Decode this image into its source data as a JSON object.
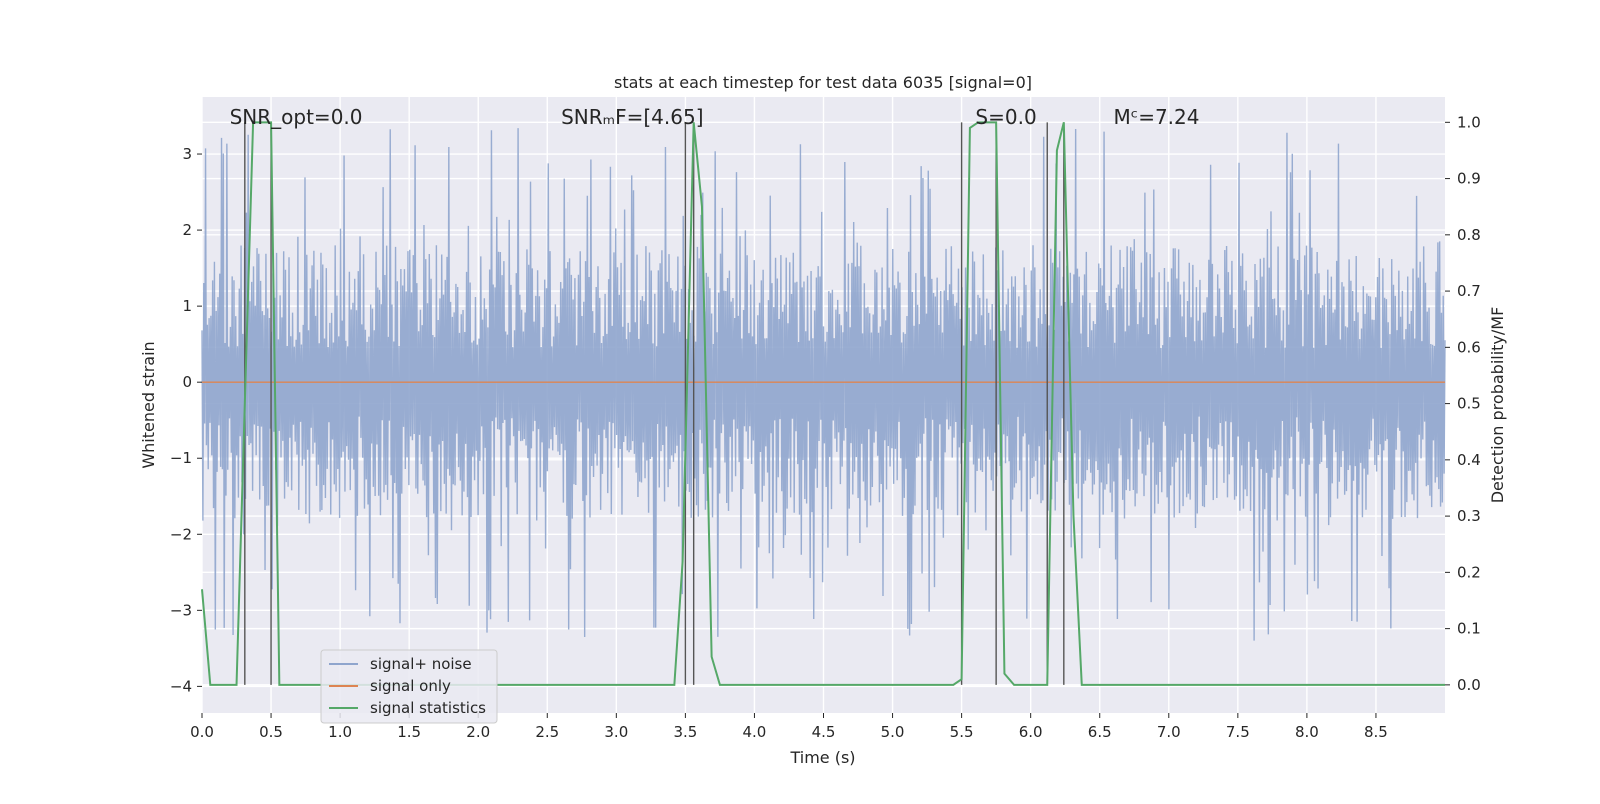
{
  "chart_data": {
    "type": "line",
    "title": "stats at each timestep for test data 6035 [signal=0]",
    "xlabel": "Time (s)",
    "ylabel": "Whitened strain",
    "ylabel_right": "Detection probability/MF",
    "xlim": [
      0,
      9.0
    ],
    "ylim": [
      -4.35,
      3.75
    ],
    "ylim_right": [
      -0.05,
      1.045
    ],
    "x_ticks": [
      0.0,
      0.5,
      1.0,
      1.5,
      2.0,
      2.5,
      3.0,
      3.5,
      4.0,
      4.5,
      5.0,
      5.5,
      6.0,
      6.5,
      7.0,
      7.5,
      8.0,
      8.5
    ],
    "x_tick_labels": [
      "0.0",
      "0.5",
      "1.0",
      "1.5",
      "2.0",
      "2.5",
      "3.0",
      "3.5",
      "4.0",
      "4.5",
      "5.0",
      "5.5",
      "6.0",
      "6.5",
      "7.0",
      "7.5",
      "8.0",
      "8.5"
    ],
    "y_ticks": [
      -4,
      -3,
      -2,
      -1,
      0,
      1,
      2,
      3
    ],
    "y_tick_labels": [
      "−4",
      "−3",
      "−2",
      "−1",
      "0",
      "1",
      "2",
      "3"
    ],
    "y_ticks_right": [
      0.0,
      0.1,
      0.2,
      0.3,
      0.4,
      0.5,
      0.6,
      0.7,
      0.8,
      0.9,
      1.0
    ],
    "y_tick_labels_right": [
      "0.0",
      "0.1",
      "0.2",
      "0.3",
      "0.4",
      "0.5",
      "0.6",
      "0.7",
      "0.8",
      "0.9",
      "1.0"
    ],
    "grid": true,
    "legend_position": "lower-left",
    "annotations": [
      {
        "text": "SNR_opt=0.0",
        "x": 0.2
      },
      {
        "text": "SNRₘF=[4.65]",
        "x": 2.6
      },
      {
        "text": "S=0.0",
        "x": 5.6
      },
      {
        "text": "Mᶜ=7.24",
        "x": 6.6
      }
    ],
    "vertical_lines": [
      0.31,
      0.5,
      3.5,
      3.56,
      5.5,
      5.75,
      6.12,
      6.24
    ],
    "series": [
      {
        "name": "signal+ noise",
        "color": "#8fa5cd",
        "axis": "left",
        "description": "noise band approx symmetric, core within +/-1.8, spikes to +/-3.4",
        "x_range": [
          0,
          9.0
        ],
        "amplitude_core": 1.8,
        "amplitude_peak": 3.4
      },
      {
        "name": "signal only",
        "color": "#dd8452",
        "axis": "left",
        "x": [
          0,
          9.0
        ],
        "y": [
          0,
          0
        ]
      },
      {
        "name": "signal statistics",
        "color": "#55a868",
        "axis": "right",
        "x": [
          0.0,
          0.06,
          0.12,
          0.25,
          0.31,
          0.37,
          0.44,
          0.5,
          0.56,
          0.62,
          0.68,
          3.42,
          3.48,
          3.56,
          3.62,
          3.69,
          3.75,
          3.81,
          5.44,
          5.5,
          5.56,
          5.62,
          5.69,
          5.75,
          5.81,
          5.88,
          6.12,
          6.19,
          6.24,
          6.31,
          6.37,
          9.0
        ],
        "y": [
          0.17,
          0.0,
          0.0,
          0.0,
          0.5,
          1.0,
          1.0,
          1.0,
          0.0,
          0.0,
          0.0,
          0.0,
          0.22,
          1.0,
          0.85,
          0.05,
          0.0,
          0.0,
          0.0,
          0.01,
          0.99,
          1.0,
          1.0,
          1.0,
          0.02,
          0.0,
          0.0,
          0.95,
          1.0,
          0.3,
          0.0,
          0.0
        ]
      }
    ]
  }
}
